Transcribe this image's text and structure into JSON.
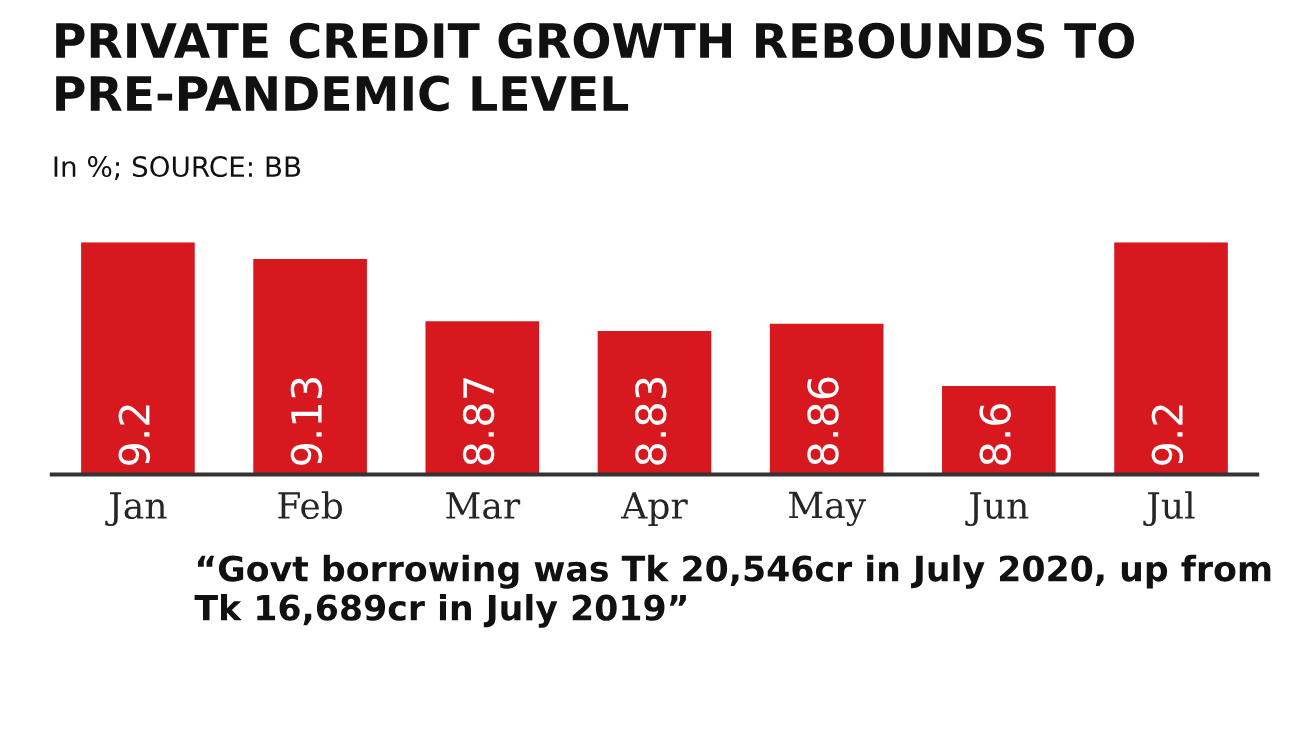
{
  "chart_data": {
    "type": "bar",
    "title": "PRIVATE CREDIT GROWTH REBOUNDS TO PRE-PANDEMIC LEVEL",
    "subtitle": "In %; SOURCE: BB",
    "categories": [
      "Jan",
      "Feb",
      "Mar",
      "Apr",
      "May",
      "Jun",
      "Jul"
    ],
    "values": [
      9.2,
      9.13,
      8.87,
      8.83,
      8.86,
      8.6,
      9.2
    ],
    "color": "#d7191f",
    "ylim": [
      8.23,
      9.2
    ],
    "data_labels": true,
    "tick_labels": "x",
    "grid": false,
    "legend": false,
    "annotations": [
      "“Govt borrowing was Tk 20,546cr in July 2020, up from Tk 16,689cr in July 2019”"
    ]
  }
}
